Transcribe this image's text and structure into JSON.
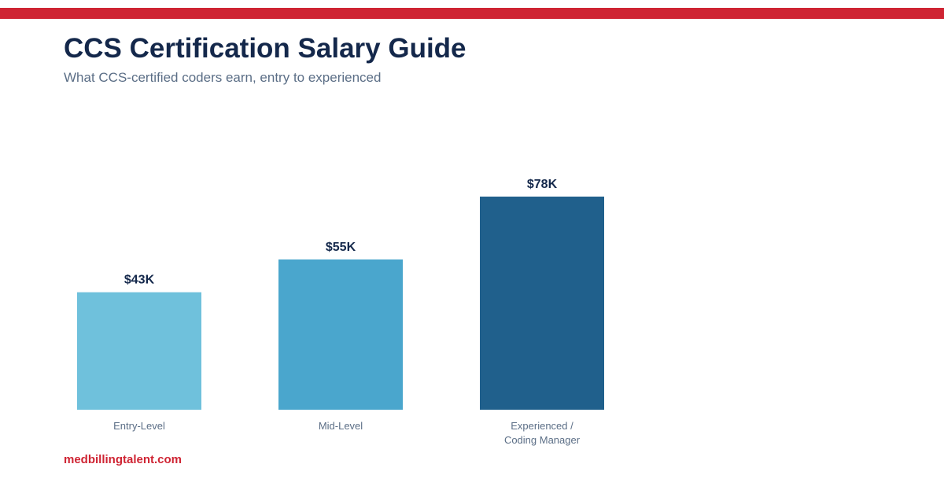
{
  "header": {
    "title": "CCS Certification Salary Guide",
    "subtitle": "What CCS-certified coders earn, entry to experienced"
  },
  "footer": {
    "brand": "medbillingtalent.com"
  },
  "colors": {
    "accent_stripe": "#cf2433",
    "title": "#14284b",
    "brand": "#cf2433"
  },
  "chart_data": {
    "type": "bar",
    "categories": [
      [
        "Entry-Level"
      ],
      [
        "Mid-Level"
      ],
      [
        "Experienced /",
        "Coding Manager"
      ]
    ],
    "values": [
      43,
      55,
      78
    ],
    "value_labels": [
      "$43K",
      "$55K",
      "$78K"
    ],
    "bar_colors": [
      "#6fc1dc",
      "#4aa6cd",
      "#20608c"
    ],
    "ylim": [
      0,
      78
    ],
    "grid": false,
    "title": "CCS Certification Salary Guide",
    "subtitle": "What CCS-certified coders earn, entry to experienced"
  }
}
